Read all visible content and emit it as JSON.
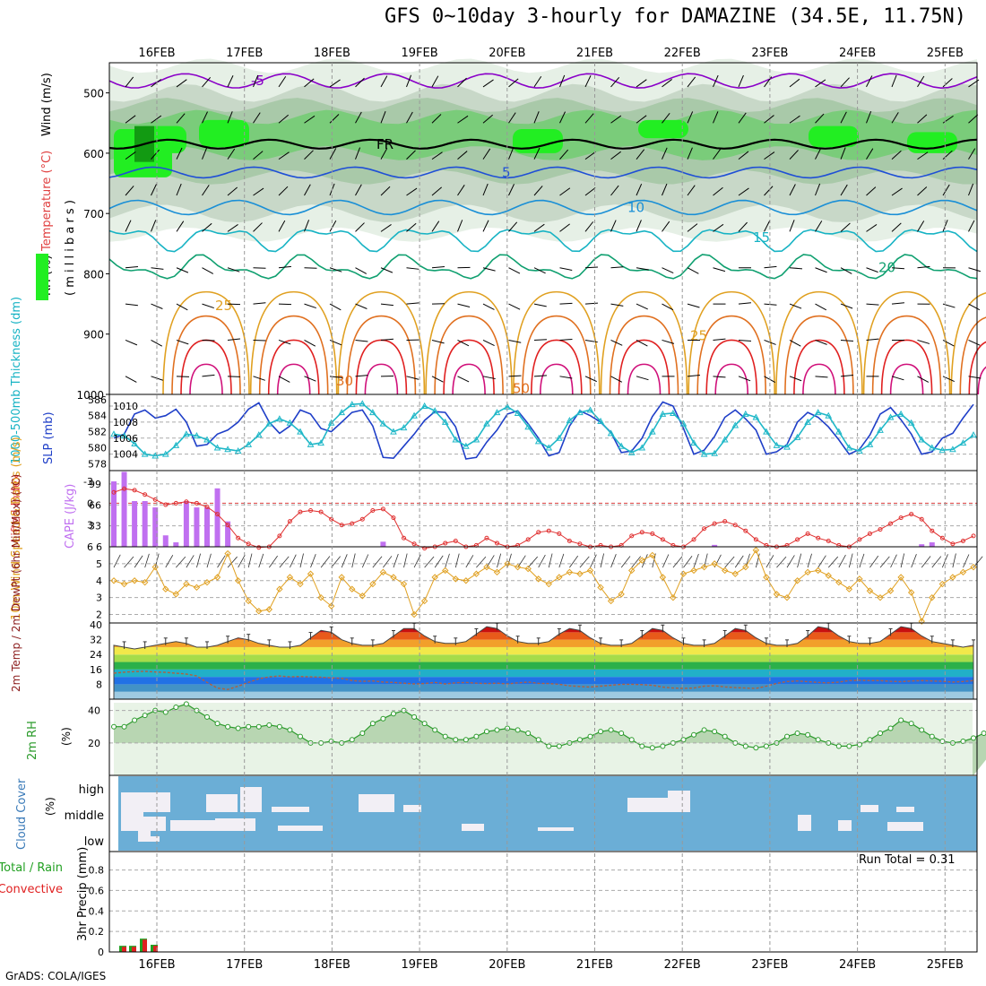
{
  "title": "GFS 0~10day 3-hourly for DAMAZINE (34.5E, 11.75N)",
  "footer": "GrADS: COLA/IGES",
  "run_total": "Run Total = 0.31",
  "days": [
    "16FEB",
    "17FEB",
    "18FEB",
    "19FEB",
    "20FEB",
    "21FEB",
    "22FEB",
    "23FEB",
    "24FEB",
    "25FEB"
  ],
  "colors": {
    "purple": "#8a00c8",
    "blue": "#1f4fd6",
    "cyan": "#17b3c4",
    "rh_green": "#1ec81e",
    "orange": "#e0a020",
    "red": "#e02020",
    "cloud_blue": "#6baed6",
    "cloud_white": "#f2eff5",
    "precip_green": "#22a022",
    "precip_red": "#e02020"
  },
  "chart_data": [
    {
      "type": "area",
      "panel": "upper-air",
      "title": "GFS 0~10day 3-hourly for DAMAZINE (34.5E, 11.75N)",
      "ylabel_parts": [
        "RH (%)",
        "Temperature (°C)",
        "Wind (m/s)"
      ],
      "ylabel_units": "( m i l l i b a r s )",
      "yticks": [
        500,
        600,
        700,
        800,
        900,
        1000
      ],
      "ylim": [
        1000,
        450
      ],
      "contour_labels": [
        {
          "text": "-5",
          "color": "#8a00c8"
        },
        {
          "text": "FR",
          "color": "#000000"
        },
        {
          "text": "5",
          "color": "#1f4fd6"
        },
        {
          "text": "10",
          "color": "#1a8fd6"
        },
        {
          "text": "15",
          "color": "#17b3c4"
        },
        {
          "text": "20",
          "color": "#10a070"
        },
        {
          "text": "25",
          "color": "#e0a020"
        },
        {
          "text": "30",
          "color": "#e07020"
        },
        {
          "text": "50",
          "color": "#808080"
        }
      ],
      "isotherm_levels": [
        {
          "label": "-5",
          "p": 480,
          "amp": 8,
          "color": "#8a00c8"
        },
        {
          "label": "FR",
          "p": 585,
          "amp": 5,
          "color": "#000000"
        },
        {
          "label": "5",
          "p": 632,
          "amp": 6,
          "color": "#1f4fd6"
        },
        {
          "label": "10",
          "p": 690,
          "amp": 8,
          "color": "#1a8fd6"
        },
        {
          "label": "15",
          "p": 740,
          "amp": 10,
          "color": "#17b3c4"
        },
        {
          "label": "20",
          "p": 790,
          "amp": 10,
          "color": "#10a070"
        }
      ]
    },
    {
      "type": "line",
      "panel": "thickness-slp",
      "ylabel_left": "1000-500mb Thickness (dm)",
      "ylabel_right": "SLP (mb)",
      "yticks_left": [
        578,
        580,
        582,
        584,
        586
      ],
      "yticks_right": [
        1004,
        1006,
        1008,
        1010
      ],
      "series": [
        {
          "name": "SLP (mb)",
          "axis": "right",
          "color": "#1f3fc8",
          "values": [
            1006,
            1006.5,
            1009,
            1009.5,
            1008.5,
            1008.8,
            1009.6,
            1008,
            1005,
            1005.2,
            1006.5,
            1007,
            1008,
            1009.6,
            1010.4,
            1008,
            1006.6,
            1007.5,
            1009.5,
            1009,
            1007.2,
            1006.8,
            1008,
            1009.2,
            1009.5,
            1007.5,
            1003.6,
            1003.5,
            1005,
            1006.5,
            1008.2,
            1009.3,
            1009.2,
            1007.4,
            1003.4,
            1003.6,
            1005.5,
            1007,
            1009,
            1009.4,
            1007.8,
            1006,
            1003.8,
            1004.2,
            1007.5,
            1009.4,
            1008.8,
            1008,
            1006.7,
            1004.2,
            1004.4,
            1006,
            1008.7,
            1010.5,
            1010,
            1007.2,
            1004,
            1004.5,
            1006.2,
            1008.6,
            1009.5,
            1008.4,
            1007,
            1004,
            1004.3,
            1005.2,
            1008,
            1009.2,
            1008.6,
            1007.4,
            1005.8,
            1004,
            1004.6,
            1006.4,
            1009,
            1009.8,
            1008.3,
            1006.5,
            1004,
            1004.3,
            1006,
            1006.6,
            1008.5,
            1010.2
          ]
        },
        {
          "name": "Thickness (dm)",
          "axis": "left",
          "color": "#20b8c8",
          "marker": "triangle",
          "values": [
            581.7,
            581.5,
            580.5,
            579.2,
            579.0,
            579.2,
            580.3,
            581.7,
            581.5,
            581.0,
            580.0,
            579.8,
            579.6,
            580.4,
            581.6,
            583.0,
            583.6,
            583.1,
            582.0,
            580.4,
            580.6,
            583.1,
            584.4,
            585.4,
            585.5,
            584.4,
            583.0,
            582.0,
            582.5,
            584.0,
            585.2,
            584.6,
            583.2,
            581.0,
            580.2,
            581.0,
            583.0,
            584.4,
            585.1,
            584.3,
            582.6,
            580.8,
            580.0,
            581.2,
            583.4,
            584.4,
            584.7,
            583.3,
            581.8,
            580.2,
            579.4,
            580.0,
            582.0,
            584.2,
            584.3,
            583.0,
            580.6,
            579.2,
            579.3,
            581.0,
            582.8,
            584.2,
            583.8,
            582.0,
            580.3,
            580.1,
            581.3,
            583.2,
            584.4,
            584.0,
            582.0,
            580.0,
            579.6,
            580.4,
            582.2,
            583.8,
            584.2,
            583.1,
            581.0,
            580.0,
            579.7,
            579.8,
            580.6,
            581.6
          ]
        }
      ]
    },
    {
      "type": "bar",
      "panel": "cape-li",
      "ylabel_left": "Lifted Index",
      "ylabel_right": "CAPE (J/kg)",
      "yticks_left": [
        -3,
        0,
        3,
        6
      ],
      "yticks_right": [
        33,
        66,
        99
      ],
      "bar_series": {
        "name": "CAPE (J/kg)",
        "color": "#c070f0",
        "values": [
          103,
          118,
          72,
          72,
          62,
          18,
          7,
          72,
          62,
          62,
          92,
          40,
          0,
          0,
          0,
          0,
          0,
          0,
          0,
          0,
          0,
          0,
          0,
          0,
          0,
          0,
          0,
          0,
          0,
          0,
          0,
          0,
          0,
          0,
          0,
          0,
          0,
          0,
          0,
          0,
          0,
          0,
          0,
          0,
          0,
          0,
          0,
          0,
          0,
          0,
          0,
          0,
          0,
          0,
          0,
          0,
          0,
          0,
          0,
          0,
          0,
          0,
          0,
          0,
          0,
          0,
          0,
          0,
          0,
          0,
          0,
          0,
          0,
          0,
          0,
          0,
          0,
          0,
          0,
          0,
          0,
          0,
          0,
          0
        ]
      },
      "line_series": {
        "name": "Lifted Index",
        "color": "#e03030",
        "values": [
          -1.5,
          -2.0,
          -1.8,
          -1.2,
          -0.5,
          0.2,
          0.0,
          -0.2,
          0.0,
          0.5,
          1.5,
          3.0,
          4.8,
          5.6,
          6.1,
          6.0,
          4.5,
          2.5,
          1.2,
          1.0,
          1.2,
          2.2,
          3.0,
          2.8,
          2.2,
          1.0,
          0.8,
          2.0,
          4.8,
          5.6,
          6.2,
          6.0,
          5.5,
          5.2,
          6.0,
          5.8,
          4.8,
          5.5,
          6.0,
          5.8,
          5.0,
          4.0,
          3.8,
          4.2,
          5.2,
          5.6,
          6.0,
          5.8,
          6.0,
          5.8,
          4.5,
          4.0,
          4.2,
          5.0,
          5.8,
          6.0,
          5.0,
          3.5,
          2.8,
          2.5,
          3.0,
          3.8,
          5.0,
          5.8,
          6.0,
          5.8,
          5.0,
          4.2,
          4.8,
          5.2,
          5.8,
          6.0,
          5.0,
          4.2,
          3.6,
          2.8,
          2.0,
          1.5,
          2.2,
          3.8,
          4.8,
          5.6,
          5.2,
          4.5
        ]
      },
      "ref_line": 0
    },
    {
      "type": "line",
      "panel": "wind10m",
      "ylabel": "10m Wind Speed & Barbs (m/s)",
      "yticks": [
        2,
        3,
        4,
        5,
        6
      ],
      "ylim": [
        1.5,
        6
      ],
      "series": [
        {
          "name": "Speed",
          "color": "#e0a020",
          "values": [
            4.0,
            3.8,
            4.0,
            3.9,
            4.8,
            3.5,
            3.2,
            3.8,
            3.6,
            3.9,
            4.2,
            5.6,
            4.0,
            2.8,
            2.2,
            2.3,
            3.5,
            4.2,
            3.8,
            4.4,
            3.0,
            2.5,
            4.2,
            3.5,
            3.1,
            3.8,
            4.5,
            4.2,
            3.8,
            2.0,
            2.8,
            4.2,
            4.6,
            4.1,
            4.0,
            4.4,
            4.8,
            4.5,
            5.0,
            4.8,
            4.7,
            4.1,
            3.8,
            4.2,
            4.5,
            4.4,
            4.6,
            3.6,
            2.8,
            3.2,
            4.6,
            5.2,
            5.5,
            4.2,
            3.0,
            4.4,
            4.6,
            4.8,
            5.0,
            4.6,
            4.4,
            4.8,
            5.8,
            4.2,
            3.2,
            3.0,
            4.0,
            4.5,
            4.6,
            4.3,
            3.9,
            3.5,
            4.1,
            3.4,
            3.0,
            3.4,
            4.2,
            3.3,
            1.6,
            3.0,
            3.8,
            4.2,
            4.5,
            4.8
          ]
        }
      ]
    },
    {
      "type": "area",
      "panel": "temp2m",
      "ylabel": "2m Temp / 2m DewPt (6hr Min/Max) (°C)",
      "yticks": [
        8,
        16,
        24,
        32,
        40
      ],
      "ylim": [
        0,
        41
      ],
      "series": [
        {
          "name": "2m Temp",
          "color": "#d04010",
          "values": [
            29,
            28,
            27,
            28,
            29,
            30,
            31,
            30,
            28,
            28,
            29,
            31,
            33,
            32,
            30,
            29,
            28,
            28,
            29,
            33,
            37,
            36,
            32,
            30,
            29,
            29,
            30,
            34,
            38,
            38,
            34,
            31,
            30,
            30,
            31,
            35,
            39,
            38,
            34,
            31,
            30,
            30,
            31,
            35,
            38,
            37,
            33,
            30,
            29,
            29,
            30,
            34,
            38,
            37,
            33,
            30,
            29,
            29,
            30,
            34,
            38,
            37,
            33,
            30,
            29,
            29,
            30,
            34,
            39,
            38,
            34,
            31,
            30,
            30,
            31,
            35,
            39,
            38,
            34,
            31,
            30,
            29,
            28,
            29
          ]
        },
        {
          "name": "2m DewPt",
          "color": "#b06040",
          "values": [
            14,
            14.5,
            14.8,
            15,
            14.6,
            14.4,
            14.0,
            13.5,
            12.5,
            9,
            6,
            5.2,
            7,
            9,
            11,
            12,
            12.5,
            12,
            12.2,
            12,
            11.8,
            11.5,
            11.2,
            10,
            9.6,
            9.8,
            9.2,
            9,
            8.6,
            8.2,
            8.4,
            9,
            8.2,
            8.8,
            9,
            8.6,
            8.4,
            8.6,
            8.2,
            8.8,
            9.2,
            8.5,
            8.4,
            8.0,
            7.2,
            6.8,
            6.5,
            7,
            7.5,
            8,
            8,
            7.8,
            7.5,
            6.5,
            6,
            5.8,
            6,
            7,
            7.2,
            6.6,
            6.2,
            6,
            5.8,
            7,
            8.5,
            9.5,
            9.8,
            9.4,
            9,
            8.8,
            9.2,
            10,
            10.2,
            10,
            10,
            9.6,
            9.4,
            9.8,
            10,
            9.8,
            9.6,
            9.2,
            9.5,
            10
          ]
        }
      ]
    },
    {
      "type": "area",
      "panel": "rh2m",
      "ylabel": "2m RH (%)",
      "yticks": [
        20,
        40
      ],
      "ylim": [
        0,
        47
      ],
      "series": [
        {
          "name": "2m RH",
          "color": "#2a9a2a",
          "values": [
            30,
            30,
            34,
            37,
            40,
            39,
            42,
            44,
            40,
            36,
            32,
            30,
            29,
            30,
            30,
            31,
            30,
            28,
            24,
            20,
            20,
            21,
            20,
            22,
            26,
            32,
            35,
            38,
            40,
            36,
            32,
            28,
            24,
            22,
            22,
            24,
            27,
            28,
            29,
            28,
            26,
            22,
            18,
            18,
            20,
            22,
            24,
            27,
            28,
            26,
            22,
            18,
            17,
            18,
            20,
            22,
            25,
            28,
            27,
            24,
            20,
            18,
            17,
            18,
            20,
            24,
            26,
            25,
            22,
            20,
            18,
            18,
            19,
            22,
            26,
            29,
            34,
            32,
            28,
            24,
            21,
            20,
            21,
            23,
            26,
            30,
            35,
            32
          ]
        }
      ]
    },
    {
      "type": "heatmap",
      "panel": "cloud-cover",
      "ylabel": "Cloud Cover (%)",
      "levels": [
        "high",
        "middle",
        "low"
      ]
    },
    {
      "type": "bar",
      "panel": "precip",
      "ylabel_parts": [
        "Total / Rain",
        "Convective",
        "3hr Precip (mm)"
      ],
      "yticks": [
        0,
        0.2,
        0.4,
        0.6,
        0.8
      ],
      "ylim": [
        0,
        0.98
      ],
      "series": [
        {
          "name": "Total / Rain",
          "color": "#22a022",
          "values": [
            0.06,
            0.06,
            0.13,
            0.07
          ]
        },
        {
          "name": "Convective",
          "color": "#e02020",
          "values": [
            0.05,
            0.05,
            0.12,
            0.06
          ]
        }
      ]
    }
  ]
}
